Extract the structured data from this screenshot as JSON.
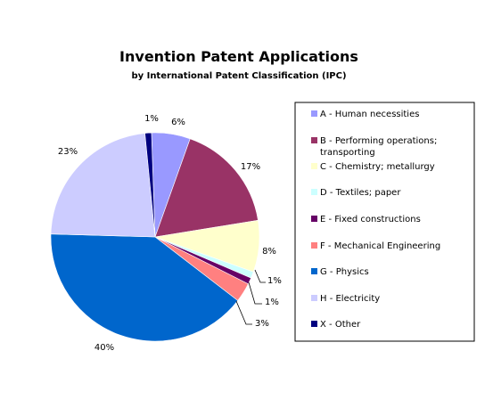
{
  "chart_data": {
    "type": "pie",
    "title": "Invention Patent Applications",
    "subtitle": "by International Patent Classification (IPC)",
    "legend_placement": "right",
    "slices": [
      {
        "legend": [
          "A - Human necessities"
        ],
        "value": 6,
        "label": "6%",
        "color": "#9999ff"
      },
      {
        "legend": [
          "B - Performing operations;",
          "transporting"
        ],
        "value": 17,
        "label": "17%",
        "color": "#993366"
      },
      {
        "legend": [
          "C - Chemistry; metallurgy"
        ],
        "value": 8,
        "label": "8%",
        "color": "#ffffcc"
      },
      {
        "legend": [
          "D - Textiles; paper"
        ],
        "value": 1,
        "label": "1%",
        "color": "#ccffff"
      },
      {
        "legend": [
          "E - Fixed constructions"
        ],
        "value": 1,
        "label": "1%",
        "color": "#660066"
      },
      {
        "legend": [
          "F - Mechanical Engineering"
        ],
        "value": 3,
        "label": "3%",
        "color": "#ff8080"
      },
      {
        "legend": [
          "G - Physics"
        ],
        "value": 40,
        "label": "40%",
        "color": "#0066cc"
      },
      {
        "legend": [
          "H - Electricity"
        ],
        "value": 23,
        "label": "23%",
        "color": "#ccccff"
      },
      {
        "legend": [
          "X - Other"
        ],
        "value": 1,
        "label": "1%",
        "color": "#000080"
      }
    ]
  }
}
